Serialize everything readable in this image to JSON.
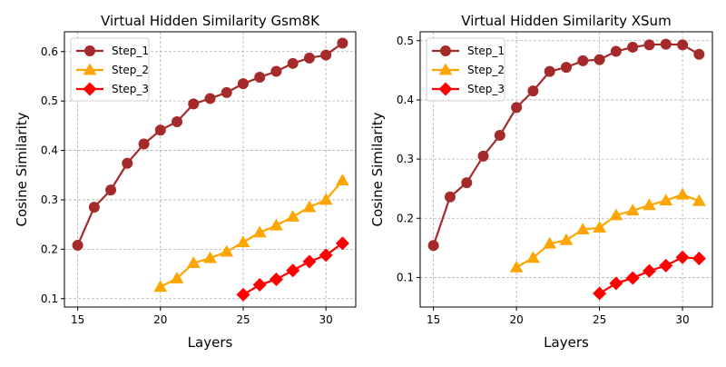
{
  "colors": {
    "Step_1": "#a52a2a",
    "Step_2": "#ffa500",
    "Step_3": "#ff0000",
    "grid": "#b0b0b0",
    "axis": "#000000"
  },
  "chart_data": [
    {
      "type": "line",
      "title": "Virtual Hidden Similarity Gsm8K",
      "xlabel": "Layers",
      "ylabel": "Cosine Similarity",
      "xlim": [
        14.2,
        31.8
      ],
      "ylim": [
        0.083,
        0.64
      ],
      "xticks": [
        15,
        20,
        25,
        30
      ],
      "yticks": [
        0.1,
        0.2,
        0.3,
        0.4,
        0.5,
        0.6
      ],
      "ytick_labels": [
        "0.1",
        "0.2",
        "0.3",
        "0.4",
        "0.5",
        "0.6"
      ],
      "grid": true,
      "legend": "top-left",
      "series": [
        {
          "name": "Step_1",
          "marker": "circle",
          "x": [
            15,
            16,
            17,
            18,
            19,
            20,
            21,
            22,
            23,
            24,
            25,
            26,
            27,
            28,
            29,
            30,
            31
          ],
          "y": [
            0.208,
            0.285,
            0.32,
            0.374,
            0.413,
            0.441,
            0.458,
            0.494,
            0.505,
            0.517,
            0.535,
            0.548,
            0.56,
            0.576,
            0.587,
            0.593,
            0.617
          ]
        },
        {
          "name": "Step_2",
          "marker": "triangle",
          "x": [
            20,
            21,
            22,
            23,
            24,
            25,
            26,
            27,
            28,
            29,
            30,
            31
          ],
          "y": [
            0.124,
            0.141,
            0.172,
            0.182,
            0.195,
            0.214,
            0.234,
            0.248,
            0.266,
            0.285,
            0.3,
            0.339
          ]
        },
        {
          "name": "Step_3",
          "marker": "diamond",
          "x": [
            25,
            26,
            27,
            28,
            29,
            30,
            31
          ],
          "y": [
            0.108,
            0.128,
            0.139,
            0.157,
            0.175,
            0.188,
            0.212
          ]
        }
      ]
    },
    {
      "type": "line",
      "title": "Virtual Hidden Similarity XSum",
      "xlabel": "Layers",
      "ylabel": "Cosine Similarity",
      "xlim": [
        14.2,
        31.8
      ],
      "ylim": [
        0.05,
        0.515
      ],
      "xticks": [
        15,
        20,
        25,
        30
      ],
      "yticks": [
        0.1,
        0.2,
        0.3,
        0.4,
        0.5
      ],
      "ytick_labels": [
        "0.1",
        "0.2",
        "0.3",
        "0.4",
        "0.5"
      ],
      "grid": true,
      "legend": "top-left",
      "series": [
        {
          "name": "Step_1",
          "marker": "circle",
          "x": [
            15,
            16,
            17,
            18,
            19,
            20,
            21,
            22,
            23,
            24,
            25,
            26,
            27,
            28,
            29,
            30,
            31
          ],
          "y": [
            0.154,
            0.236,
            0.26,
            0.305,
            0.34,
            0.387,
            0.415,
            0.448,
            0.455,
            0.466,
            0.468,
            0.482,
            0.489,
            0.493,
            0.494,
            0.493,
            0.477
          ]
        },
        {
          "name": "Step_2",
          "marker": "triangle",
          "x": [
            20,
            21,
            22,
            23,
            24,
            25,
            26,
            27,
            28,
            29,
            30,
            31
          ],
          "y": [
            0.117,
            0.133,
            0.157,
            0.163,
            0.181,
            0.184,
            0.205,
            0.213,
            0.222,
            0.23,
            0.24,
            0.229
          ]
        },
        {
          "name": "Step_3",
          "marker": "diamond",
          "x": [
            25,
            26,
            27,
            28,
            29,
            30,
            31
          ],
          "y": [
            0.073,
            0.09,
            0.099,
            0.111,
            0.12,
            0.134,
            0.132
          ]
        }
      ]
    }
  ]
}
